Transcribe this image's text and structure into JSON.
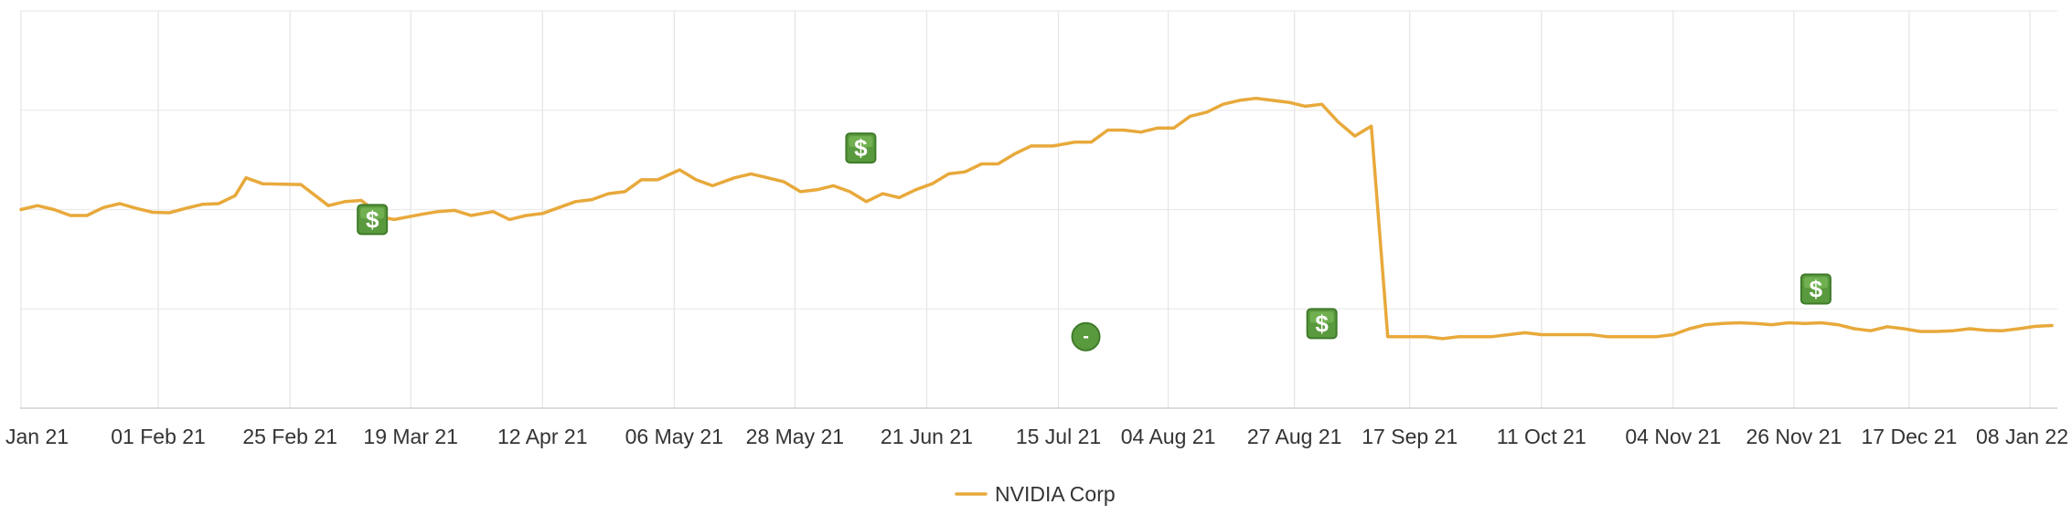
{
  "chart_data": {
    "type": "line",
    "title": "",
    "xlabel": "",
    "ylabel": "",
    "grid": true,
    "legend_position": "bottom-center",
    "x_range": [
      "2021-01-07",
      "2022-01-12"
    ],
    "y_range": [
      0,
      100
    ],
    "y_tick_values": [
      0,
      25,
      50,
      75,
      100
    ],
    "x_ticks": [
      {
        "date": "2021-01-07",
        "label": "Jan 21"
      },
      {
        "date": "2021-02-01",
        "label": "01 Feb 21"
      },
      {
        "date": "2021-02-25",
        "label": "25 Feb 21"
      },
      {
        "date": "2021-03-19",
        "label": "19 Mar 21"
      },
      {
        "date": "2021-04-12",
        "label": "12 Apr 21"
      },
      {
        "date": "2021-05-06",
        "label": "06 May 21"
      },
      {
        "date": "2021-05-28",
        "label": "28 May 21"
      },
      {
        "date": "2021-06-21",
        "label": "21 Jun 21"
      },
      {
        "date": "2021-07-15",
        "label": "15 Jul 21"
      },
      {
        "date": "2021-08-04",
        "label": "04 Aug 21"
      },
      {
        "date": "2021-08-27",
        "label": "27 Aug 21"
      },
      {
        "date": "2021-09-17",
        "label": "17 Sep 21"
      },
      {
        "date": "2021-10-11",
        "label": "11 Oct 21"
      },
      {
        "date": "2021-11-04",
        "label": "04 Nov 21"
      },
      {
        "date": "2021-11-26",
        "label": "26 Nov 21"
      },
      {
        "date": "2021-12-17",
        "label": "17 Dec 21"
      },
      {
        "date": "2022-01-08",
        "label": "08 Jan 22"
      }
    ],
    "series": [
      {
        "name": "NVIDIA Corp",
        "color": "#e8a93b",
        "points": [
          [
            "2021-01-07",
            50.0
          ],
          [
            "2021-01-10",
            51.0
          ],
          [
            "2021-01-13",
            50.0
          ],
          [
            "2021-01-16",
            48.5
          ],
          [
            "2021-01-19",
            48.5
          ],
          [
            "2021-01-22",
            50.5
          ],
          [
            "2021-01-25",
            51.5
          ],
          [
            "2021-01-28",
            50.3
          ],
          [
            "2021-01-31",
            49.3
          ],
          [
            "2021-02-03",
            49.2
          ],
          [
            "2021-02-06",
            50.3
          ],
          [
            "2021-02-09",
            51.3
          ],
          [
            "2021-02-12",
            51.5
          ],
          [
            "2021-02-15",
            53.5
          ],
          [
            "2021-02-17",
            58.0
          ],
          [
            "2021-02-20",
            56.5
          ],
          [
            "2021-02-27",
            56.3
          ],
          [
            "2021-03-04",
            51.0
          ],
          [
            "2021-03-07",
            52.0
          ],
          [
            "2021-03-10",
            52.3
          ],
          [
            "2021-03-14",
            48.0
          ],
          [
            "2021-03-16",
            47.5
          ],
          [
            "2021-03-21",
            48.8
          ],
          [
            "2021-03-24",
            49.5
          ],
          [
            "2021-03-27",
            49.8
          ],
          [
            "2021-03-30",
            48.5
          ],
          [
            "2021-04-03",
            49.5
          ],
          [
            "2021-04-06",
            47.5
          ],
          [
            "2021-04-09",
            48.5
          ],
          [
            "2021-04-12",
            49.0
          ],
          [
            "2021-04-15",
            50.5
          ],
          [
            "2021-04-18",
            52.0
          ],
          [
            "2021-04-21",
            52.5
          ],
          [
            "2021-04-24",
            54.0
          ],
          [
            "2021-04-27",
            54.5
          ],
          [
            "2021-04-30",
            57.5
          ],
          [
            "2021-05-03",
            57.5
          ],
          [
            "2021-05-07",
            60.0
          ],
          [
            "2021-05-10",
            57.5
          ],
          [
            "2021-05-13",
            56.0
          ],
          [
            "2021-05-17",
            58.0
          ],
          [
            "2021-05-20",
            59.0
          ],
          [
            "2021-05-23",
            58.0
          ],
          [
            "2021-05-26",
            57.0
          ],
          [
            "2021-05-29",
            54.5
          ],
          [
            "2021-06-01",
            55.0
          ],
          [
            "2021-06-04",
            56.0
          ],
          [
            "2021-06-07",
            54.5
          ],
          [
            "2021-06-10",
            52.0
          ],
          [
            "2021-06-13",
            54.0
          ],
          [
            "2021-06-16",
            53.0
          ],
          [
            "2021-06-19",
            55.0
          ],
          [
            "2021-06-22",
            56.5
          ],
          [
            "2021-06-25",
            59.0
          ],
          [
            "2021-06-28",
            59.5
          ],
          [
            "2021-07-01",
            61.5
          ],
          [
            "2021-07-04",
            61.5
          ],
          [
            "2021-07-07",
            64.0
          ],
          [
            "2021-07-10",
            66.0
          ],
          [
            "2021-07-14",
            66.0
          ],
          [
            "2021-07-18",
            67.0
          ],
          [
            "2021-07-21",
            67.0
          ],
          [
            "2021-07-24",
            70.0
          ],
          [
            "2021-07-27",
            70.0
          ],
          [
            "2021-07-30",
            69.5
          ],
          [
            "2021-08-02",
            70.5
          ],
          [
            "2021-08-05",
            70.5
          ],
          [
            "2021-08-08",
            73.5
          ],
          [
            "2021-08-11",
            74.5
          ],
          [
            "2021-08-14",
            76.5
          ],
          [
            "2021-08-17",
            77.5
          ],
          [
            "2021-08-20",
            78.0
          ],
          [
            "2021-08-23",
            77.5
          ],
          [
            "2021-08-26",
            77.0
          ],
          [
            "2021-08-29",
            76.0
          ],
          [
            "2021-09-01",
            76.5
          ],
          [
            "2021-09-04",
            72.0
          ],
          [
            "2021-09-07",
            68.5
          ],
          [
            "2021-09-10",
            71.0
          ],
          [
            "2021-09-13",
            18.0
          ],
          [
            "2021-09-17",
            18.0
          ],
          [
            "2021-09-20",
            18.0
          ],
          [
            "2021-09-23",
            17.5
          ],
          [
            "2021-09-26",
            18.0
          ],
          [
            "2021-09-29",
            18.0
          ],
          [
            "2021-10-02",
            18.0
          ],
          [
            "2021-10-05",
            18.5
          ],
          [
            "2021-10-08",
            19.0
          ],
          [
            "2021-10-11",
            18.5
          ],
          [
            "2021-10-14",
            18.5
          ],
          [
            "2021-10-17",
            18.5
          ],
          [
            "2021-10-20",
            18.5
          ],
          [
            "2021-10-23",
            18.0
          ],
          [
            "2021-10-26",
            18.0
          ],
          [
            "2021-10-29",
            18.0
          ],
          [
            "2021-11-01",
            18.0
          ],
          [
            "2021-11-04",
            18.5
          ],
          [
            "2021-11-07",
            20.0
          ],
          [
            "2021-11-10",
            21.0
          ],
          [
            "2021-11-13",
            21.3
          ],
          [
            "2021-11-16",
            21.5
          ],
          [
            "2021-11-19",
            21.3
          ],
          [
            "2021-11-22",
            21.0
          ],
          [
            "2021-11-25",
            21.5
          ],
          [
            "2021-11-28",
            21.3
          ],
          [
            "2021-12-01",
            21.5
          ],
          [
            "2021-12-04",
            21.0
          ],
          [
            "2021-12-07",
            20.0
          ],
          [
            "2021-12-10",
            19.5
          ],
          [
            "2021-12-13",
            20.5
          ],
          [
            "2021-12-16",
            20.0
          ],
          [
            "2021-12-19",
            19.3
          ],
          [
            "2021-12-22",
            19.3
          ],
          [
            "2021-12-25",
            19.5
          ],
          [
            "2021-12-28",
            20.0
          ],
          [
            "2021-12-31",
            19.6
          ],
          [
            "2022-01-03",
            19.5
          ],
          [
            "2022-01-06",
            20.0
          ],
          [
            "2022-01-09",
            20.6
          ],
          [
            "2022-01-12",
            20.8
          ]
        ]
      }
    ],
    "markers": [
      {
        "type": "dividend",
        "symbol": "$",
        "date": "2021-03-12",
        "y": 47.5
      },
      {
        "type": "dividend",
        "symbol": "$",
        "date": "2021-06-09",
        "y": 65.5
      },
      {
        "type": "split",
        "symbol": "-",
        "date": "2021-07-20",
        "y": 18.0
      },
      {
        "type": "dividend",
        "symbol": "$",
        "date": "2021-09-01",
        "y": 21.3
      },
      {
        "type": "dividend",
        "symbol": "$",
        "date": "2021-11-30",
        "y": 30.0
      }
    ]
  }
}
